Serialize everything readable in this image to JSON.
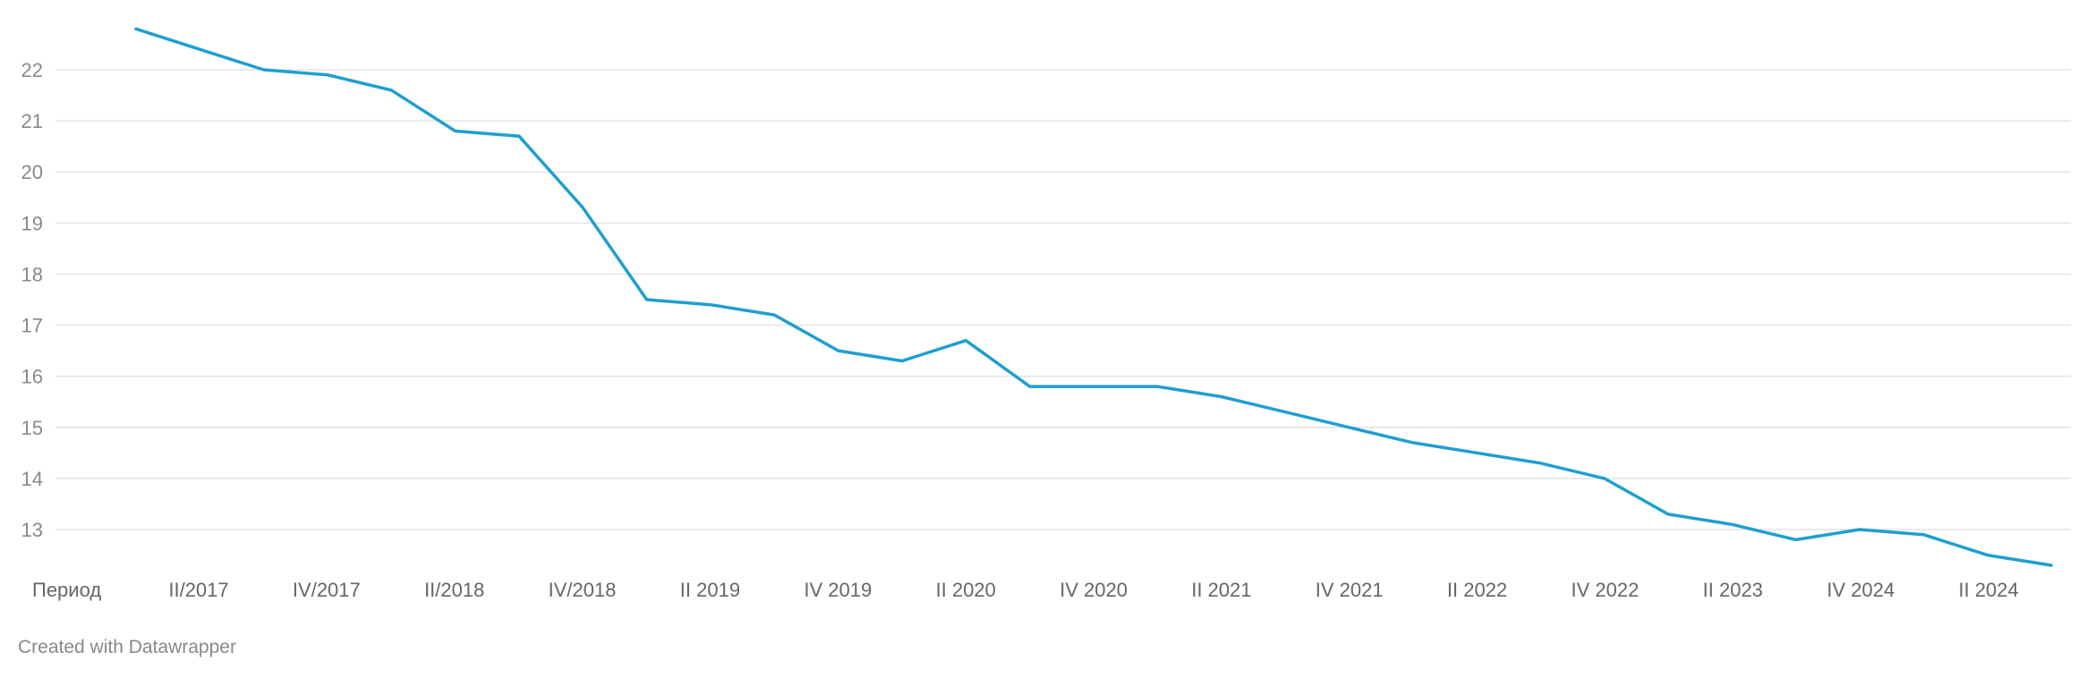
{
  "chart_data": {
    "type": "line",
    "title": "",
    "xlabel": "Период",
    "ylabel": "",
    "ylim": [
      12.3,
      22.8
    ],
    "yticks": [
      13,
      14,
      15,
      16,
      17,
      18,
      19,
      20,
      21,
      22
    ],
    "grid": true,
    "x_tick_labels": [
      "II/2017",
      "IV/2017",
      "II/2018",
      "IV/2018",
      "II 2019",
      "IV 2019",
      "II 2020",
      "IV 2020",
      "II 2021",
      "IV 2021",
      "II 2022",
      "IV 2022",
      "II 2023",
      "IV 2024",
      "II 2024"
    ],
    "series": [
      {
        "values": [
          22.8,
          22.4,
          22.0,
          21.9,
          21.6,
          20.8,
          20.7,
          19.3,
          17.5,
          17.4,
          17.2,
          16.5,
          16.3,
          16.7,
          15.8,
          15.8,
          15.8,
          15.6,
          15.3,
          15.0,
          14.7,
          14.5,
          14.3,
          14.0,
          13.3,
          13.1,
          12.8,
          13.0,
          12.9,
          12.5,
          12.3
        ],
        "color": "#1f9fcf"
      }
    ]
  },
  "footer": {
    "credit": "Created with Datawrapper"
  },
  "colors": {
    "line": "#1f9fcf",
    "grid": "#e3e3e3",
    "tick_text": "#8a8a8a",
    "x_text": "#666666"
  }
}
